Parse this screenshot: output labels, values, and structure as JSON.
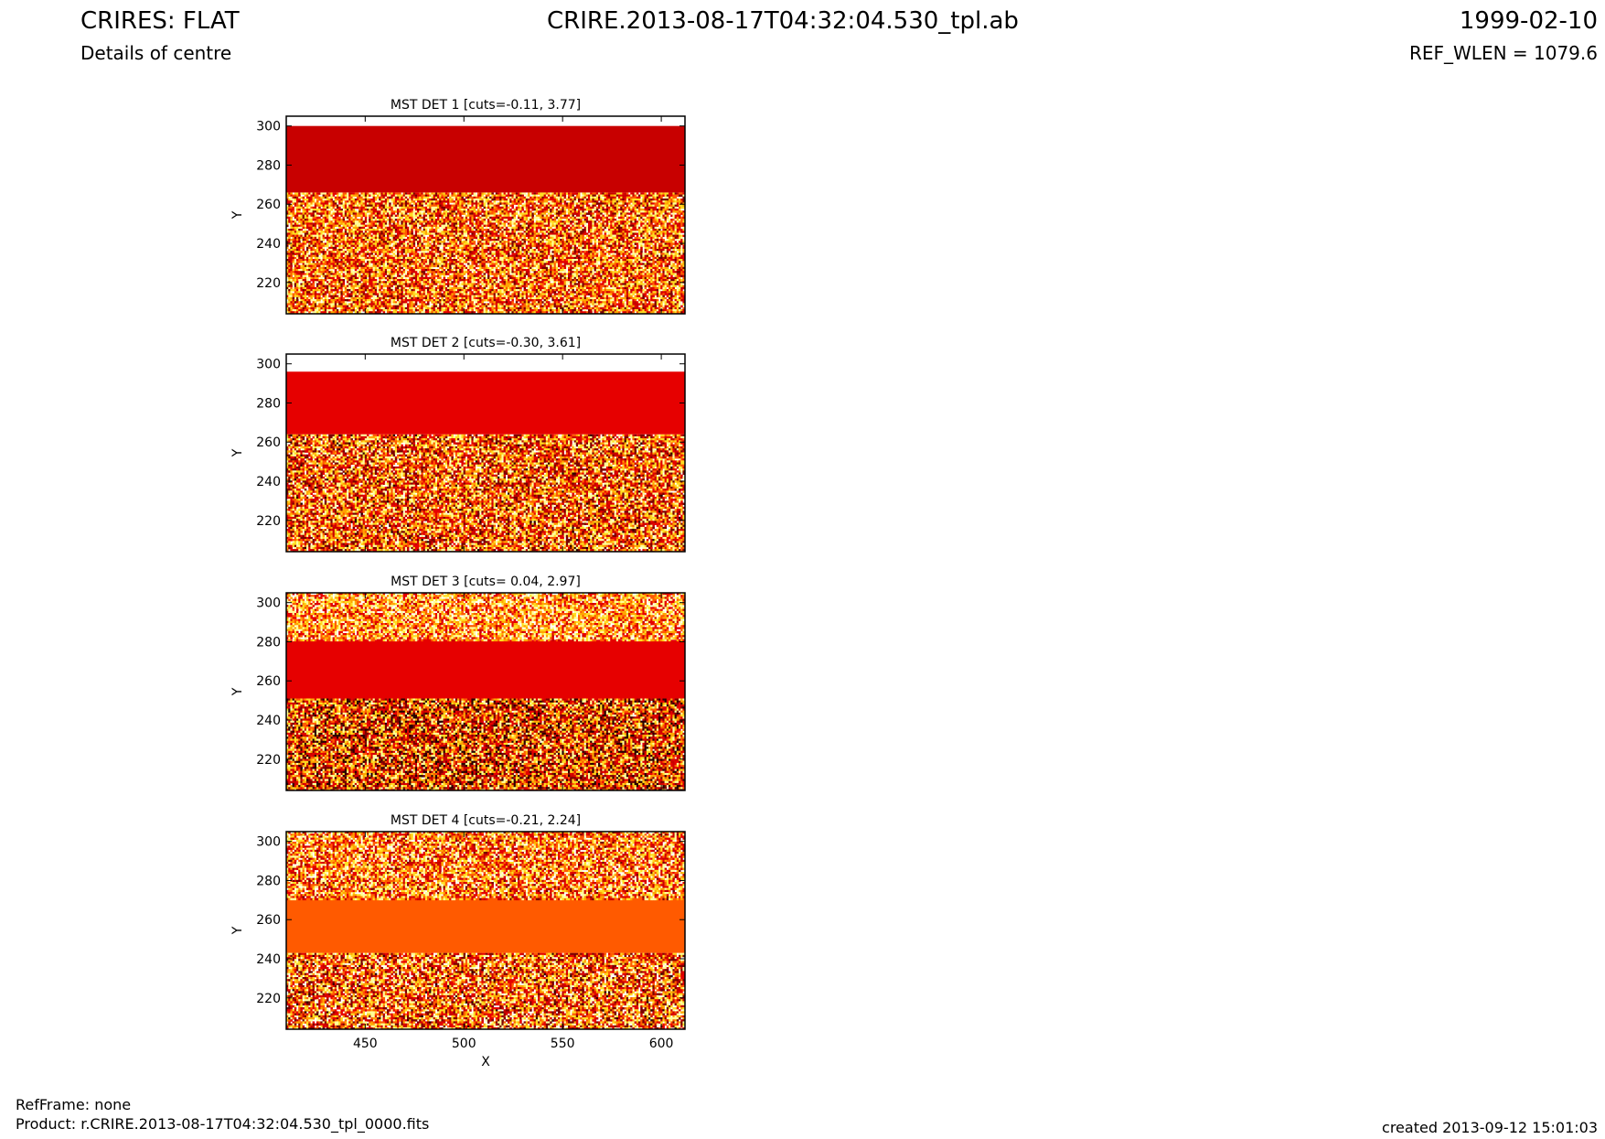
{
  "header": {
    "title": "CRIRES: FLAT",
    "subtitle": "Details of centre",
    "filename": "CRIRE.2013-08-17T04:32:04.530_tpl.ab",
    "date": "1999-02-10",
    "ref_wlen": "REF_WLEN = 1079.6"
  },
  "footer": {
    "refframe": "RefFrame: none",
    "product": "Product: r.CRIRE.2013-08-17T04:32:04.530_tpl_0000.fits",
    "created": "created 2013-09-12 15:01:03"
  },
  "colors": {
    "axis": "#000000",
    "background": "#ffffff",
    "colormap": [
      "#2a0000",
      "#7a0000",
      "#c80000",
      "#e60000",
      "#ff5a00",
      "#ffa500",
      "#ffdd22",
      "#ffff9a",
      "#ffffff"
    ]
  },
  "chart_data": [
    {
      "type": "heatmap",
      "title": "MST DET 1 [cuts=-0.11, 3.77]",
      "xlabel": "",
      "ylabel": "Y",
      "xlim": [
        410,
        612
      ],
      "ylim": [
        204,
        305
      ],
      "xticks": [
        450,
        500,
        550,
        600
      ],
      "yticks": [
        220,
        240,
        260,
        280,
        300
      ],
      "bands": [
        {
          "y": [
            204,
            266
          ],
          "pattern": "noise",
          "level_range": [
            0.15,
            0.95
          ]
        },
        {
          "y": [
            266,
            300
          ],
          "pattern": "flat",
          "color": "#c80000"
        },
        {
          "y": [
            300,
            305
          ],
          "pattern": "white"
        }
      ]
    },
    {
      "type": "heatmap",
      "title": "MST DET 2 [cuts=-0.30, 3.61]",
      "xlabel": "",
      "ylabel": "Y",
      "xlim": [
        410,
        612
      ],
      "ylim": [
        204,
        305
      ],
      "xticks": [
        450,
        500,
        550,
        600
      ],
      "yticks": [
        220,
        240,
        260,
        280,
        300
      ],
      "bands": [
        {
          "y": [
            204,
            264
          ],
          "pattern": "noise",
          "level_range": [
            0.1,
            0.95
          ]
        },
        {
          "y": [
            264,
            296
          ],
          "pattern": "flat",
          "color": "#e60000"
        },
        {
          "y": [
            296,
            305
          ],
          "pattern": "white"
        }
      ]
    },
    {
      "type": "heatmap",
      "title": "MST DET 3 [cuts= 0.04, 2.97]",
      "xlabel": "",
      "ylabel": "Y",
      "xlim": [
        410,
        612
      ],
      "ylim": [
        204,
        305
      ],
      "xticks": [
        450,
        500,
        550,
        600
      ],
      "yticks": [
        220,
        240,
        260,
        280,
        300
      ],
      "bands": [
        {
          "y": [
            204,
            251
          ],
          "pattern": "noise",
          "level_range": [
            0.0,
            0.9
          ]
        },
        {
          "y": [
            251,
            281
          ],
          "pattern": "flat",
          "color": "#e60000"
        },
        {
          "y": [
            281,
            305
          ],
          "pattern": "noise",
          "level_range": [
            0.3,
            1.0
          ]
        }
      ]
    },
    {
      "type": "heatmap",
      "title": "MST DET 4 [cuts=-0.21, 2.24]",
      "xlabel": "X",
      "ylabel": "Y",
      "xlim": [
        410,
        612
      ],
      "ylim": [
        204,
        305
      ],
      "xticks": [
        450,
        500,
        550,
        600
      ],
      "yticks": [
        220,
        240,
        260,
        280,
        300
      ],
      "bands": [
        {
          "y": [
            204,
            243
          ],
          "pattern": "noise",
          "level_range": [
            0.1,
            1.0
          ]
        },
        {
          "y": [
            243,
            271
          ],
          "pattern": "flat",
          "color": "#ff5a00"
        },
        {
          "y": [
            271,
            305
          ],
          "pattern": "noise",
          "level_range": [
            0.2,
            1.0
          ]
        }
      ]
    }
  ]
}
